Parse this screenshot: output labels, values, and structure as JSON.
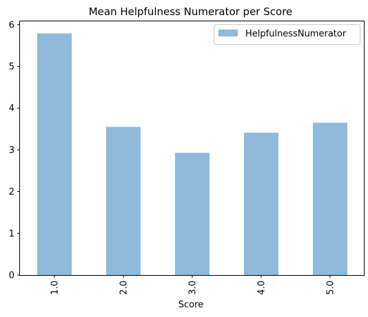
{
  "chart_data": {
    "type": "bar",
    "title": "Mean Helpfulness Numerator per Score",
    "xlabel": "Score",
    "ylabel": "",
    "categories": [
      "1.0",
      "2.0",
      "3.0",
      "4.0",
      "5.0"
    ],
    "series": [
      {
        "name": "HelpfulnessNumerator",
        "values": [
          5.79,
          3.55,
          2.93,
          3.41,
          3.65
        ]
      }
    ],
    "ylim": [
      0,
      6.08
    ],
    "yticks": [
      "0",
      "1",
      "2",
      "3",
      "4",
      "5",
      "6"
    ],
    "grid": false,
    "legend_position": "top-right",
    "bar_color": "#8fbadb",
    "x_tick_rotation": 90
  }
}
